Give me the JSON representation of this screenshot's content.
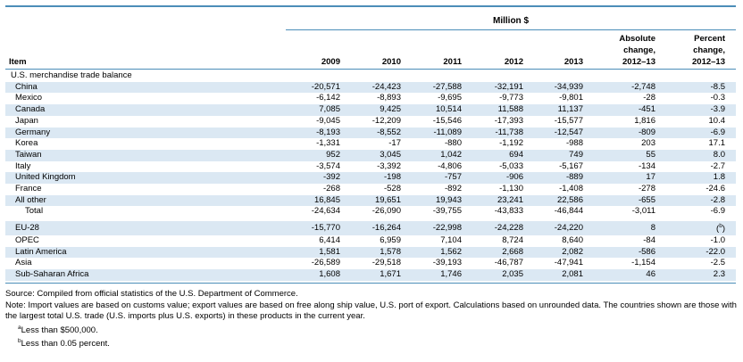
{
  "header": {
    "unit": "Million $",
    "item_label": "Item",
    "years": [
      "2009",
      "2010",
      "2011",
      "2012",
      "2013"
    ],
    "abs_change": [
      "Absolute",
      "change,",
      "2012–13"
    ],
    "pct_change": [
      "Percent",
      "change,",
      "2012–13"
    ]
  },
  "section_label": "U.S. merchandise trade balance",
  "rows": [
    {
      "label": "China",
      "v": [
        "-20,571",
        "-24,423",
        "-27,588",
        "-32,191",
        "-34,939",
        "-2,748",
        "-8.5"
      ]
    },
    {
      "label": "Mexico",
      "v": [
        "-6,142",
        "-8,893",
        "-9,695",
        "-9,773",
        "-9,801",
        "-28",
        "-0.3"
      ]
    },
    {
      "label": "Canada",
      "v": [
        "7,085",
        "9,425",
        "10,514",
        "11,588",
        "11,137",
        "-451",
        "-3.9"
      ]
    },
    {
      "label": "Japan",
      "v": [
        "-9,045",
        "-12,209",
        "-15,546",
        "-17,393",
        "-15,577",
        "1,816",
        "10.4"
      ]
    },
    {
      "label": "Germany",
      "v": [
        "-8,193",
        "-8,552",
        "-11,089",
        "-11,738",
        "-12,547",
        "-809",
        "-6.9"
      ]
    },
    {
      "label": "Korea",
      "v": [
        "-1,331",
        "-17",
        "-880",
        "-1,192",
        "-988",
        "203",
        "17.1"
      ]
    },
    {
      "label": "Taiwan",
      "v": [
        "952",
        "3,045",
        "1,042",
        "694",
        "749",
        "55",
        "8.0"
      ]
    },
    {
      "label": "Italy",
      "v": [
        "-3,574",
        "-3,392",
        "-4,806",
        "-5,033",
        "-5,167",
        "-134",
        "-2.7"
      ]
    },
    {
      "label": "United Kingdom",
      "v": [
        "-392",
        "-198",
        "-757",
        "-906",
        "-889",
        "17",
        "1.8"
      ]
    },
    {
      "label": "France",
      "v": [
        "-268",
        "-528",
        "-892",
        "-1,130",
        "-1,408",
        "-278",
        "-24.6"
      ]
    },
    {
      "label": "All other",
      "v": [
        "16,845",
        "19,651",
        "19,943",
        "23,241",
        "22,586",
        "-655",
        "-2.8"
      ]
    }
  ],
  "total": {
    "label": "Total",
    "v": [
      "-24,634",
      "-26,090",
      "-39,755",
      "-43,833",
      "-46,844",
      "-3,011",
      "-6.9"
    ]
  },
  "groups": [
    {
      "label": "EU-28",
      "v": [
        "-15,770",
        "-16,264",
        "-22,998",
        "-24,228",
        "-24,220",
        "8",
        "(b)"
      ]
    },
    {
      "label": "OPEC",
      "v": [
        "6,414",
        "6,959",
        "7,104",
        "8,724",
        "8,640",
        "-84",
        "-1.0"
      ]
    },
    {
      "label": "Latin America",
      "v": [
        "1,581",
        "1,578",
        "1,562",
        "2,668",
        "2,082",
        "-586",
        "-22.0"
      ]
    },
    {
      "label": "Asia",
      "v": [
        "-26,589",
        "-29,518",
        "-39,193",
        "-46,787",
        "-47,941",
        "-1,154",
        "-2.5"
      ]
    },
    {
      "label": "Sub-Saharan Africa",
      "v": [
        "1,608",
        "1,671",
        "1,746",
        "2,035",
        "2,081",
        "46",
        "2.3"
      ]
    }
  ],
  "notes": {
    "source": "Source: Compiled from official statistics of the U.S. Department of Commerce.",
    "note": "Note: Import values are based on customs value; export values are based on free along ship value, U.S. port of export. Calculations based on unrounded data. The countries shown are those with the largest total U.S. trade (U.S. imports plus U.S. exports) in these products in the current year.",
    "fn_a_mark": "a",
    "fn_a": "Less than $500,000.",
    "fn_b_mark": "b",
    "fn_b": "Less than 0.05 percent."
  }
}
